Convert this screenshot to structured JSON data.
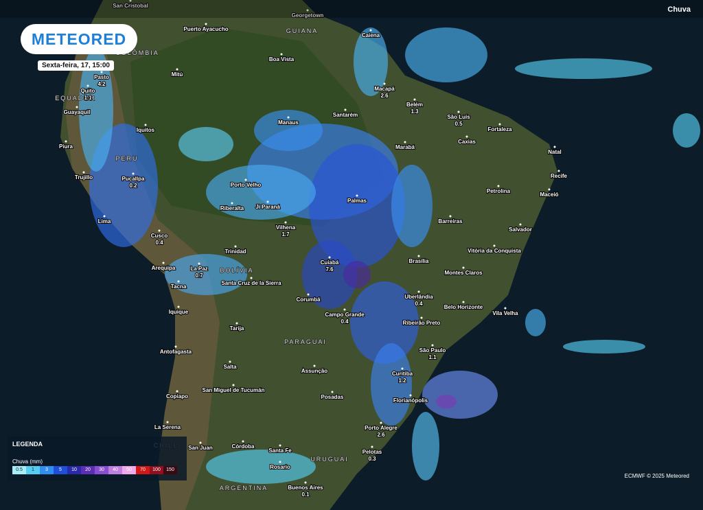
{
  "header": {
    "logo": "METEORED",
    "date": "Sexta-feira, 17, 15:00",
    "layer": "Chuva"
  },
  "regions": [
    "GUIANA",
    "COLÔMBIA",
    "EQUADOR",
    "PERU",
    "BOLÍVIA",
    "PARAGUAI",
    "CHILE",
    "URUGUAI",
    "ARGENTINA"
  ],
  "cities": [
    {
      "name": "San Cristobal"
    },
    {
      "name": "Georgetown"
    },
    {
      "name": "Puerto Ayacucho"
    },
    {
      "name": "Boa Vista"
    },
    {
      "name": "Caiena"
    },
    {
      "name": "Mitú"
    },
    {
      "name": "Pasto",
      "value": 4.2
    },
    {
      "name": "Quito",
      "value": 1.1
    },
    {
      "name": "Guayaquil"
    },
    {
      "name": "Iquitos"
    },
    {
      "name": "Piura"
    },
    {
      "name": "Trujillo"
    },
    {
      "name": "Pucallpa",
      "value": 0.2
    },
    {
      "name": "Lima"
    },
    {
      "name": "Cusco",
      "value": 0.4
    },
    {
      "name": "Arequipa"
    },
    {
      "name": "La Paz",
      "value": 0.7
    },
    {
      "name": "Tacna"
    },
    {
      "name": "Iquique"
    },
    {
      "name": "Antofagasta"
    },
    {
      "name": "Copiapo"
    },
    {
      "name": "La Serena"
    },
    {
      "name": "San Juan"
    },
    {
      "name": "Córdoba"
    },
    {
      "name": "Santa Fe"
    },
    {
      "name": "Rosario"
    },
    {
      "name": "Buenos Aires",
      "value": 0.1
    },
    {
      "name": "Salta"
    },
    {
      "name": "Tarija"
    },
    {
      "name": "San Miguel de Tucumán"
    },
    {
      "name": "Assunção"
    },
    {
      "name": "Posadas"
    },
    {
      "name": "Manaus"
    },
    {
      "name": "Santarém"
    },
    {
      "name": "Macapá",
      "value": 2.6
    },
    {
      "name": "Belém",
      "value": 1.3
    },
    {
      "name": "São Luís",
      "value": 0.5
    },
    {
      "name": "Fortaleza"
    },
    {
      "name": "Caxias"
    },
    {
      "name": "Natal"
    },
    {
      "name": "Recife"
    },
    {
      "name": "Maceió"
    },
    {
      "name": "Petrolina"
    },
    {
      "name": "Salvador"
    },
    {
      "name": "Barreiras"
    },
    {
      "name": "Vitória da Conquista"
    },
    {
      "name": "Montes Claros"
    },
    {
      "name": "Belo Horizonte"
    },
    {
      "name": "Vila Velha"
    },
    {
      "name": "Ribeirão Preto"
    },
    {
      "name": "São Paulo",
      "value": 1.1
    },
    {
      "name": "Curitiba",
      "value": 1.2
    },
    {
      "name": "Florianópolis"
    },
    {
      "name": "Porto Alegre",
      "value": 2.6
    },
    {
      "name": "Pelotas",
      "value": 0.3
    },
    {
      "name": "Uberlândia",
      "value": 0.4
    },
    {
      "name": "Brasília"
    },
    {
      "name": "Palmas"
    },
    {
      "name": "Marabá"
    },
    {
      "name": "Cuiabá",
      "value": 7.6
    },
    {
      "name": "Campo Grande",
      "value": 0.4
    },
    {
      "name": "Corumbá"
    },
    {
      "name": "Santa Cruz de la Sierra"
    },
    {
      "name": "Trinidad"
    },
    {
      "name": "Vilhena",
      "value": 1.7
    },
    {
      "name": "Ji Paraná"
    },
    {
      "name": "Riberalta"
    },
    {
      "name": "Porto Velho"
    }
  ],
  "legend": {
    "title": "LEGENDA",
    "unit": "Chuva (mm)",
    "steps": [
      {
        "label": "0.5",
        "color": "#a8ecf5"
      },
      {
        "label": "1",
        "color": "#55ccf0"
      },
      {
        "label": "3",
        "color": "#2f8ef0"
      },
      {
        "label": "5",
        "color": "#1f4fd8"
      },
      {
        "label": "10",
        "color": "#2a2aa8"
      },
      {
        "label": "20",
        "color": "#5a2fb5"
      },
      {
        "label": "30",
        "color": "#8a4fd0"
      },
      {
        "label": "40",
        "color": "#c07ee0"
      },
      {
        "label": "50",
        "color": "#f0a8e8"
      },
      {
        "label": "70",
        "color": "#d01818"
      },
      {
        "label": "100",
        "color": "#901020"
      },
      {
        "label": "150",
        "color": "#3a0a14"
      }
    ]
  },
  "credit": "ECMWF © 2025 Meteored"
}
